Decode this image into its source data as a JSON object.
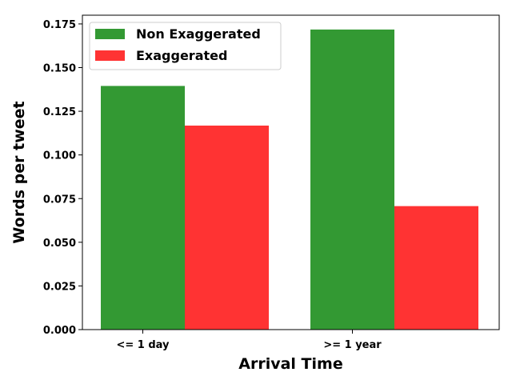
{
  "chart_data": {
    "type": "bar",
    "categories": [
      "<= 1 day",
      ">= 1 year"
    ],
    "series": [
      {
        "name": "Non Exaggerated",
        "color": "#339933",
        "values": [
          0.1395,
          0.1718
        ]
      },
      {
        "name": "Exaggerated",
        "color": "#ff3333",
        "values": [
          0.1168,
          0.0707
        ]
      }
    ],
    "xlabel": "Arrival Time",
    "ylabel": "Words per tweet",
    "ylim": [
      0,
      0.18
    ],
    "yticks": [
      0.0,
      0.025,
      0.05,
      0.075,
      0.1,
      0.125,
      0.15,
      0.175
    ],
    "ytick_labels": [
      "0.000",
      "0.025",
      "0.050",
      "0.075",
      "0.100",
      "0.125",
      "0.150",
      "0.175"
    ],
    "grid": false,
    "legend_position": "top-left"
  }
}
